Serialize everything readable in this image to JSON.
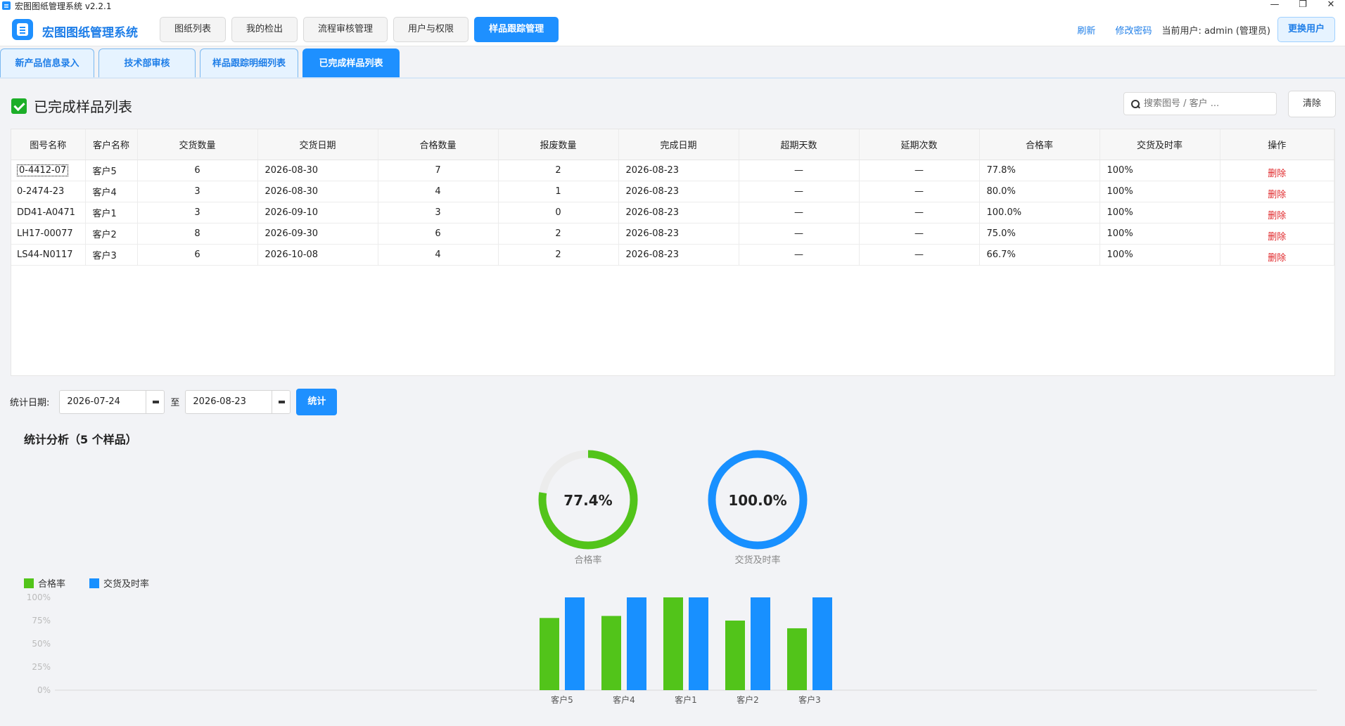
{
  "window": {
    "title": "宏图图纸管理系统  v2.2.1",
    "controls": [
      "—",
      "❐",
      "✕"
    ]
  },
  "header": {
    "brand": "宏图图纸管理系统",
    "nav": [
      "图纸列表",
      "我的检出",
      "流程审核管理",
      "用户与权限",
      "样品跟踪管理"
    ],
    "active_nav": 4,
    "refresh": "刷新",
    "change_password": "修改密码",
    "current_user": "当前用户: admin (管理员)",
    "switch_user": "更换用户"
  },
  "subtabs": [
    "新产品信息录入",
    "技术部审核",
    "样品跟踪明细列表",
    "已完成样品列表"
  ],
  "active_subtab": 3,
  "section": {
    "title": "已完成样品列表"
  },
  "search": {
    "placeholder": "搜索图号 / 客户 ...",
    "clear": "清除"
  },
  "table": {
    "columns": [
      "图号名称",
      "客户名称",
      "交货数量",
      "交货日期",
      "合格数量",
      "报废数量",
      "完成日期",
      "超期天数",
      "延期次数",
      "合格率",
      "交货及时率",
      "操作"
    ],
    "rows": [
      [
        "0-4412-07",
        "客户5",
        "6",
        "2026-08-30",
        "7",
        "2",
        "2026-08-23",
        "—",
        "—",
        "77.8%",
        "100%",
        "删除"
      ],
      [
        "0-2474-23",
        "客户4",
        "3",
        "2026-08-30",
        "4",
        "1",
        "2026-08-23",
        "—",
        "—",
        "80.0%",
        "100%",
        "删除"
      ],
      [
        "DD41-A0471",
        "客户1",
        "3",
        "2026-09-10",
        "3",
        "0",
        "2026-08-23",
        "—",
        "—",
        "100.0%",
        "100%",
        "删除"
      ],
      [
        "LH17-00077",
        "客户2",
        "8",
        "2026-09-30",
        "6",
        "2",
        "2026-08-23",
        "—",
        "—",
        "75.0%",
        "100%",
        "删除"
      ],
      [
        "LS44-N0117",
        "客户3",
        "6",
        "2026-10-08",
        "4",
        "2",
        "2026-08-23",
        "—",
        "—",
        "66.7%",
        "100%",
        "删除"
      ]
    ]
  },
  "stats": {
    "label": "统计日期:",
    "from": "2026-07-24",
    "to_label": "至",
    "to": "2026-08-23",
    "button": "统计",
    "analysis_title": "统计分析（5 个样品）"
  },
  "donuts": [
    {
      "label": "合格率",
      "value_text": "77.4%",
      "value": 77.4,
      "color": "#52c41a"
    },
    {
      "label": "交货及时率",
      "value_text": "100.0%",
      "value": 100.0,
      "color": "#1890ff"
    }
  ],
  "chart_data": {
    "type": "bar",
    "categories": [
      "客户5",
      "客户4",
      "客户1",
      "客户2",
      "客户3"
    ],
    "series": [
      {
        "name": "合格率",
        "values": [
          77.8,
          80.0,
          100.0,
          75.0,
          66.7
        ],
        "color": "#52c41a"
      },
      {
        "name": "交货及时率",
        "values": [
          100,
          100,
          100,
          100,
          100
        ],
        "color": "#1890ff"
      }
    ],
    "y_ticks": [
      "100%",
      "75%",
      "50%",
      "25%",
      "0%"
    ],
    "ylim": [
      0,
      100
    ],
    "legend": "top-left"
  }
}
